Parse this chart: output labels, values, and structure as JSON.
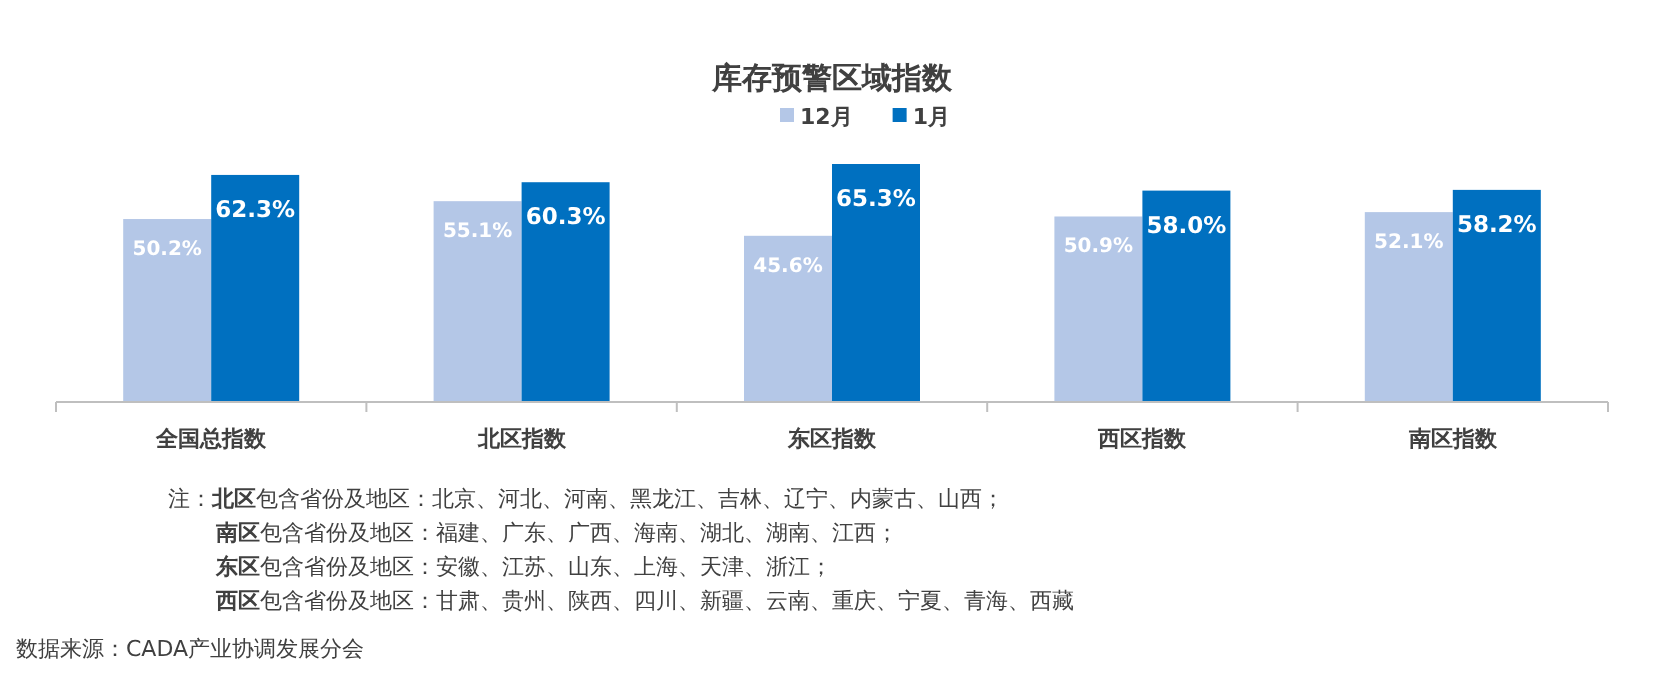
{
  "chart_data": {
    "type": "bar",
    "title": "库存预警区域指数",
    "categories": [
      "全国总指数",
      "北区指数",
      "东区指数",
      "西区指数",
      "南区指数"
    ],
    "series": [
      {
        "name": "12月",
        "color": "#b4c7e7",
        "values": [
          50.2,
          55.1,
          45.6,
          50.9,
          52.1
        ],
        "value_labels": [
          "50.2%",
          "55.1%",
          "45.6%",
          "50.9%",
          "52.1%"
        ]
      },
      {
        "name": "1月",
        "color": "#0070c0",
        "values": [
          62.3,
          60.3,
          65.3,
          58.0,
          58.2
        ],
        "value_labels": [
          "62.3%",
          "60.3%",
          "65.3%",
          "58.0%",
          "58.2%"
        ]
      }
    ],
    "legend": "top",
    "marker": "square",
    "annotations": [
      "注：**北区**包含省份及地区：北京、河北、河南、黑龙江、吉林、辽宁、内蒙古、山西；",
      "**南区**包含省份及地区：福建、广东、广西、海南、湖北、湖南、江西；",
      "**东区**包含省份及地区：安徽、江苏、山东、上海、天津、浙江；",
      "**西区**包含省份及地区：甘肃、贵州、陕西、四川、新疆、云南、重庆、宁夏、青海、西藏",
      "数据来源：CADA产业协调发展分会"
    ]
  }
}
